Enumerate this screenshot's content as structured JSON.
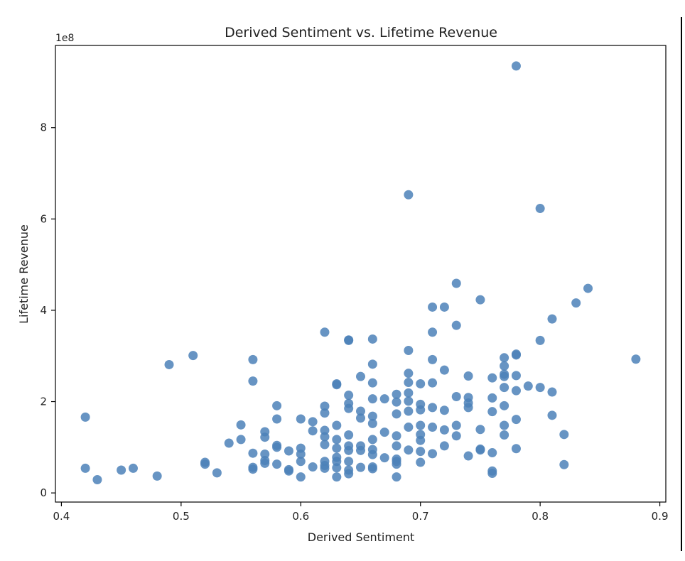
{
  "chart_data": {
    "type": "scatter",
    "title": "Derived Sentiment vs. Lifetime Revenue",
    "xlabel": "Derived Sentiment",
    "ylabel": "Lifetime Revenue",
    "y_offset_label": "1e8",
    "xlim": [
      0.395,
      0.905
    ],
    "ylim": [
      -0.2,
      9.8
    ],
    "x_ticks": [
      0.4,
      0.5,
      0.6,
      0.7,
      0.8,
      0.9
    ],
    "x_tick_labels": [
      "0.4",
      "0.5",
      "0.6",
      "0.7",
      "0.8",
      "0.9"
    ],
    "y_ticks": [
      0,
      2,
      4,
      6,
      8
    ],
    "y_tick_labels": [
      "0",
      "2",
      "4",
      "6",
      "8"
    ],
    "grid": false,
    "marker_color": "#4C81B9",
    "points": [
      [
        0.42,
        1.66
      ],
      [
        0.42,
        0.54
      ],
      [
        0.43,
        0.29
      ],
      [
        0.45,
        0.5
      ],
      [
        0.46,
        0.54
      ],
      [
        0.48,
        0.37
      ],
      [
        0.49,
        2.81
      ],
      [
        0.51,
        3.01
      ],
      [
        0.52,
        0.67
      ],
      [
        0.52,
        0.63
      ],
      [
        0.53,
        0.44
      ],
      [
        0.54,
        1.09
      ],
      [
        0.55,
        1.49
      ],
      [
        0.55,
        1.17
      ],
      [
        0.56,
        2.92
      ],
      [
        0.56,
        2.45
      ],
      [
        0.56,
        0.87
      ],
      [
        0.56,
        0.56
      ],
      [
        0.56,
        0.52
      ],
      [
        0.57,
        1.34
      ],
      [
        0.57,
        1.22
      ],
      [
        0.57,
        0.85
      ],
      [
        0.57,
        0.71
      ],
      [
        0.57,
        0.65
      ],
      [
        0.58,
        1.91
      ],
      [
        0.58,
        1.62
      ],
      [
        0.58,
        1.04
      ],
      [
        0.58,
        1.0
      ],
      [
        0.58,
        0.63
      ],
      [
        0.59,
        0.92
      ],
      [
        0.59,
        0.51
      ],
      [
        0.59,
        0.48
      ],
      [
        0.6,
        1.62
      ],
      [
        0.6,
        0.98
      ],
      [
        0.6,
        0.85
      ],
      [
        0.6,
        0.69
      ],
      [
        0.6,
        0.35
      ],
      [
        0.61,
        1.56
      ],
      [
        0.61,
        1.36
      ],
      [
        0.61,
        0.57
      ],
      [
        0.62,
        3.52
      ],
      [
        0.62,
        1.9
      ],
      [
        0.62,
        1.75
      ],
      [
        0.62,
        1.37
      ],
      [
        0.62,
        1.23
      ],
      [
        0.62,
        1.06
      ],
      [
        0.62,
        0.69
      ],
      [
        0.62,
        0.6
      ],
      [
        0.62,
        0.54
      ],
      [
        0.63,
        2.39
      ],
      [
        0.63,
        2.37
      ],
      [
        0.63,
        1.48
      ],
      [
        0.63,
        1.17
      ],
      [
        0.63,
        0.98
      ],
      [
        0.63,
        0.78
      ],
      [
        0.63,
        0.69
      ],
      [
        0.63,
        0.55
      ],
      [
        0.63,
        0.35
      ],
      [
        0.64,
        3.35
      ],
      [
        0.64,
        3.34
      ],
      [
        0.64,
        2.14
      ],
      [
        0.64,
        1.96
      ],
      [
        0.64,
        1.85
      ],
      [
        0.64,
        1.27
      ],
      [
        0.64,
        1.03
      ],
      [
        0.64,
        0.93
      ],
      [
        0.64,
        0.69
      ],
      [
        0.64,
        0.5
      ],
      [
        0.64,
        0.42
      ],
      [
        0.65,
        2.55
      ],
      [
        0.65,
        1.79
      ],
      [
        0.65,
        1.64
      ],
      [
        0.65,
        1.03
      ],
      [
        0.65,
        0.93
      ],
      [
        0.65,
        0.56
      ],
      [
        0.66,
        3.37
      ],
      [
        0.66,
        2.82
      ],
      [
        0.66,
        2.41
      ],
      [
        0.66,
        2.06
      ],
      [
        0.66,
        1.68
      ],
      [
        0.66,
        1.52
      ],
      [
        0.66,
        1.17
      ],
      [
        0.66,
        0.95
      ],
      [
        0.66,
        0.84
      ],
      [
        0.66,
        0.57
      ],
      [
        0.66,
        0.53
      ],
      [
        0.67,
        2.06
      ],
      [
        0.67,
        1.33
      ],
      [
        0.67,
        0.77
      ],
      [
        0.68,
        2.16
      ],
      [
        0.68,
        1.99
      ],
      [
        0.68,
        1.73
      ],
      [
        0.68,
        1.25
      ],
      [
        0.68,
        1.03
      ],
      [
        0.68,
        0.74
      ],
      [
        0.68,
        0.69
      ],
      [
        0.68,
        0.63
      ],
      [
        0.68,
        0.35
      ],
      [
        0.69,
        6.53
      ],
      [
        0.69,
        3.12
      ],
      [
        0.69,
        2.62
      ],
      [
        0.69,
        2.42
      ],
      [
        0.69,
        2.19
      ],
      [
        0.69,
        2.01
      ],
      [
        0.69,
        1.79
      ],
      [
        0.69,
        1.44
      ],
      [
        0.69,
        0.94
      ],
      [
        0.7,
        2.39
      ],
      [
        0.7,
        1.94
      ],
      [
        0.7,
        1.82
      ],
      [
        0.7,
        1.48
      ],
      [
        0.7,
        1.28
      ],
      [
        0.7,
        1.15
      ],
      [
        0.7,
        0.91
      ],
      [
        0.7,
        0.67
      ],
      [
        0.71,
        4.07
      ],
      [
        0.71,
        3.52
      ],
      [
        0.71,
        2.92
      ],
      [
        0.71,
        2.41
      ],
      [
        0.71,
        1.87
      ],
      [
        0.71,
        1.44
      ],
      [
        0.71,
        0.86
      ],
      [
        0.72,
        4.07
      ],
      [
        0.72,
        2.69
      ],
      [
        0.72,
        1.81
      ],
      [
        0.72,
        1.38
      ],
      [
        0.72,
        1.03
      ],
      [
        0.73,
        4.59
      ],
      [
        0.73,
        3.67
      ],
      [
        0.73,
        2.11
      ],
      [
        0.73,
        1.48
      ],
      [
        0.73,
        1.25
      ],
      [
        0.74,
        2.56
      ],
      [
        0.74,
        2.09
      ],
      [
        0.74,
        1.97
      ],
      [
        0.74,
        1.87
      ],
      [
        0.74,
        0.81
      ],
      [
        0.75,
        4.23
      ],
      [
        0.75,
        1.39
      ],
      [
        0.75,
        0.96
      ],
      [
        0.75,
        0.94
      ],
      [
        0.76,
        2.52
      ],
      [
        0.76,
        2.08
      ],
      [
        0.76,
        1.78
      ],
      [
        0.76,
        0.88
      ],
      [
        0.76,
        0.48
      ],
      [
        0.76,
        0.43
      ],
      [
        0.77,
        2.96
      ],
      [
        0.77,
        2.78
      ],
      [
        0.77,
        2.6
      ],
      [
        0.77,
        2.55
      ],
      [
        0.77,
        2.31
      ],
      [
        0.77,
        1.91
      ],
      [
        0.77,
        1.48
      ],
      [
        0.77,
        1.27
      ],
      [
        0.78,
        9.35
      ],
      [
        0.78,
        3.04
      ],
      [
        0.78,
        3.02
      ],
      [
        0.78,
        2.57
      ],
      [
        0.78,
        2.24
      ],
      [
        0.78,
        1.61
      ],
      [
        0.78,
        0.97
      ],
      [
        0.79,
        2.34
      ],
      [
        0.8,
        6.23
      ],
      [
        0.8,
        3.34
      ],
      [
        0.8,
        2.31
      ],
      [
        0.81,
        3.81
      ],
      [
        0.81,
        2.21
      ],
      [
        0.81,
        1.7
      ],
      [
        0.82,
        1.28
      ],
      [
        0.82,
        0.62
      ],
      [
        0.83,
        4.16
      ],
      [
        0.84,
        4.48
      ],
      [
        0.88,
        2.93
      ]
    ]
  }
}
